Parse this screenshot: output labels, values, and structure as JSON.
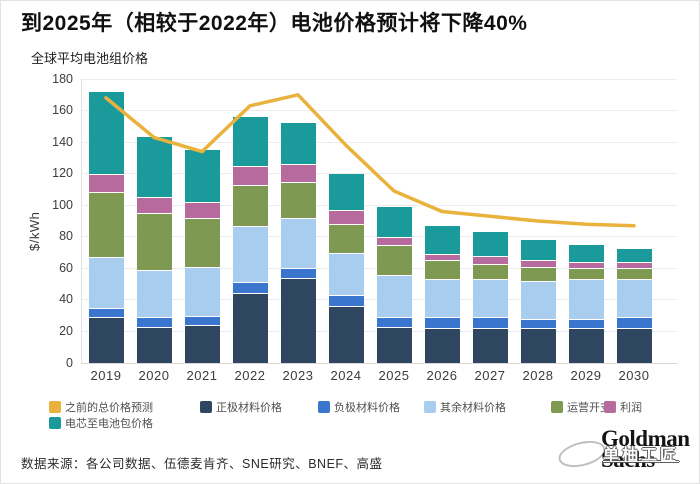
{
  "page": {
    "title": "到2025年（相较于2022年）电池价格预计将下降40%",
    "subtitle": "全球平均电池组价格",
    "source": "数据来源：各公司数据、伍德麦肯齐、SNE研究、BNEF、高盛",
    "watermark": {
      "logo_line1": "Goldman",
      "logo_line2": "Sachs",
      "overlay_text": "单柚工匠"
    }
  },
  "chart_data": {
    "type": "bar",
    "subtype": "stacked-bars-with-line-overlay",
    "title": "全球平均电池组价格",
    "xlabel": "",
    "ylabel": "$/kWh",
    "ylim": [
      0,
      180
    ],
    "ytick_step": 20,
    "grid": true,
    "legend_position": "bottom",
    "categories": [
      "2019",
      "2020",
      "2021",
      "2022",
      "2023",
      "2024",
      "2025",
      "2026",
      "2027",
      "2028",
      "2029",
      "2030"
    ],
    "stack_series": [
      {
        "key": "cathode",
        "name": "正极材料价格",
        "color": "#2e4660",
        "values": [
          29,
          23,
          24,
          44,
          54,
          36,
          23,
          22,
          22,
          22,
          22,
          22
        ]
      },
      {
        "key": "anode",
        "name": "负极材料价格",
        "color": "#3a76ce",
        "values": [
          6,
          6,
          6,
          7,
          6,
          7,
          6,
          7,
          7,
          6,
          6,
          7
        ]
      },
      {
        "key": "other-materials",
        "name": "其余材料价格",
        "color": "#a8cdef",
        "values": [
          32,
          30,
          31,
          36,
          32,
          27,
          27,
          24,
          24,
          24,
          25,
          24
        ]
      },
      {
        "key": "opex",
        "name": "运营开支",
        "color": "#7e9a52",
        "values": [
          41,
          36,
          31,
          26,
          23,
          18,
          19,
          12,
          10,
          9,
          7,
          7
        ]
      },
      {
        "key": "profit",
        "name": "利润",
        "color": "#b76a9d",
        "values": [
          12,
          10,
          10,
          12,
          11,
          9,
          5,
          4,
          5,
          4,
          4,
          4
        ]
      },
      {
        "key": "cell-to-pack",
        "name": "电芯至电池包价格",
        "color": "#1a9a9a",
        "values": [
          52,
          38,
          33,
          31,
          26,
          23,
          19,
          18,
          15,
          13,
          11,
          8
        ]
      }
    ],
    "line_series": {
      "key": "previous-forecast",
      "name": "之前的总价格预测",
      "color": "#e9b23d",
      "values": [
        168,
        143,
        134,
        163,
        170,
        138,
        109,
        96,
        93,
        90,
        88,
        87
      ]
    },
    "totals": [
      172,
      143,
      135,
      156,
      152,
      120,
      99,
      87,
      83,
      79,
      75,
      72
    ]
  },
  "legend": {
    "items": [
      {
        "key": "previous-forecast",
        "label": "之前的总价格预测",
        "color": "#e9b23d"
      },
      {
        "key": "cathode",
        "label": "正极材料价格",
        "color": "#2e4660"
      },
      {
        "key": "anode",
        "label": "负极材料价格",
        "color": "#3a76ce"
      },
      {
        "key": "other-materials",
        "label": "其余材料价格",
        "color": "#a8cdef"
      },
      {
        "key": "opex",
        "label": "运营开支",
        "color": "#7e9a52"
      },
      {
        "key": "profit",
        "label": "利润",
        "color": "#b76a9d"
      },
      {
        "key": "cell-to-pack",
        "label": "电芯至电池包价格",
        "color": "#1a9a9a"
      }
    ]
  }
}
